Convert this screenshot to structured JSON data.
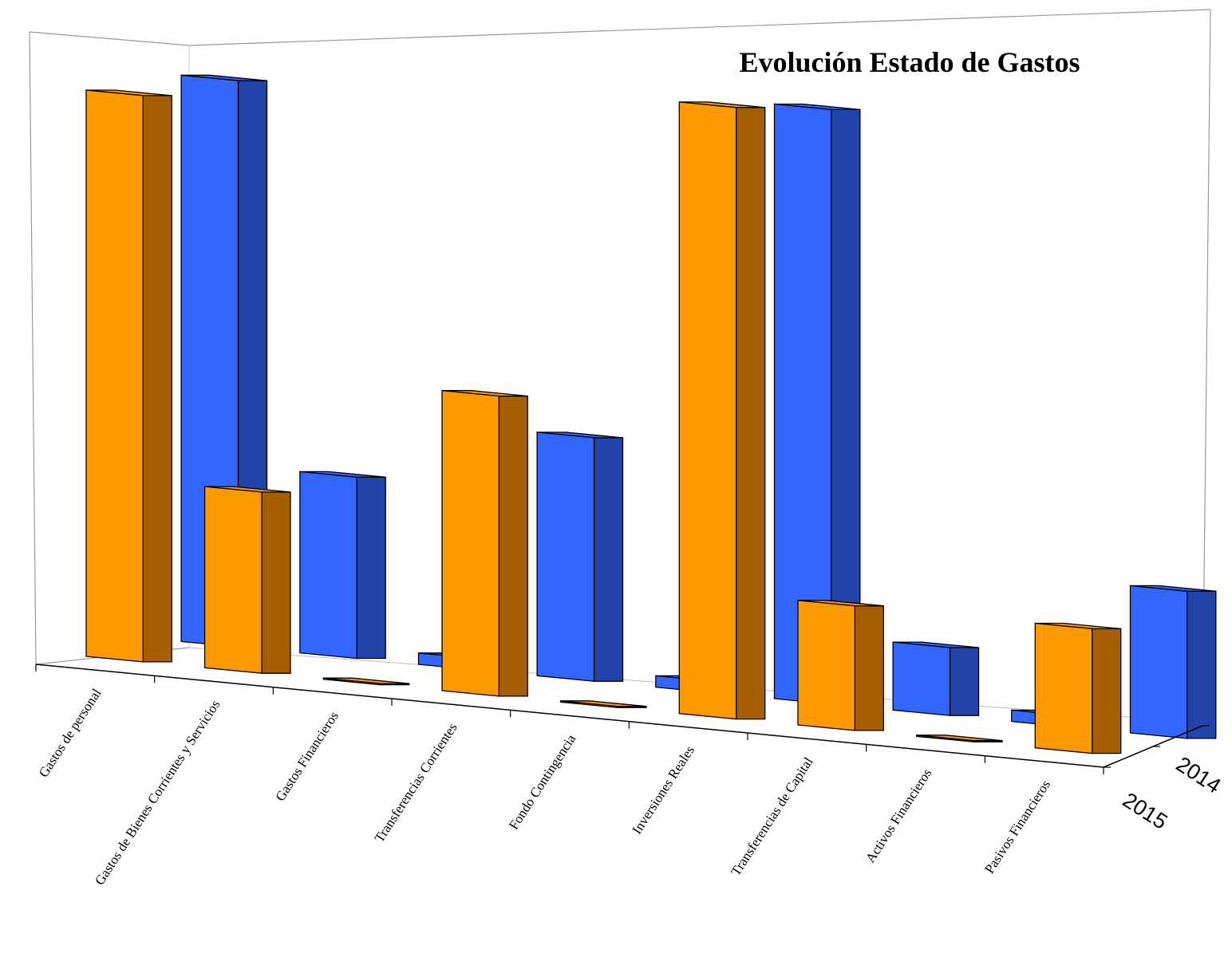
{
  "chart_data": {
    "type": "bar",
    "title": "Evolución Estado de Gastos",
    "categories": [
      "Gastos de personal",
      "Gastos de Bienes Corrientes y Servicios",
      "Gastos Financieros",
      "Transferencias Corrientes",
      "Fondo Contingencia",
      "Inversiones Reales",
      "Transferencias de Capital",
      "Activos Financieros",
      "Pasivos Financieros"
    ],
    "series": [
      {
        "name": "2015",
        "color": "#FF9900",
        "side_color": "#A65F00",
        "values": [
          100,
          32,
          0,
          53,
          0,
          108,
          22,
          0,
          22
        ]
      },
      {
        "name": "2014",
        "color": "#3366FF",
        "side_color": "#2244AA",
        "values": [
          100,
          32,
          2,
          43,
          2,
          105,
          12,
          2,
          26
        ]
      }
    ],
    "depth_axis": [
      "2015",
      "2014"
    ],
    "style": "3d-columns",
    "grid": false,
    "legend": "none"
  }
}
